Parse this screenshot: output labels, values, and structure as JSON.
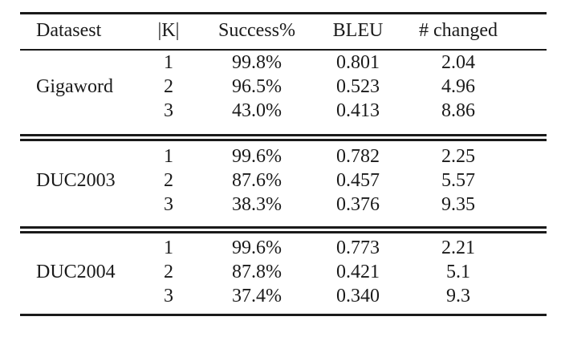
{
  "table": {
    "headers": {
      "dataset": "Datasest",
      "k": "|K|",
      "success": "Success%",
      "bleu": "BLEU",
      "changed": "# changed"
    },
    "groups": [
      {
        "dataset": "Gigaword",
        "rows": [
          {
            "k": "1",
            "success": "99.8%",
            "bleu": "0.801",
            "changed": "2.04"
          },
          {
            "k": "2",
            "success": "96.5%",
            "bleu": "0.523",
            "changed": "4.96"
          },
          {
            "k": "3",
            "success": "43.0%",
            "bleu": "0.413",
            "changed": "8.86"
          }
        ]
      },
      {
        "dataset": "DUC2003",
        "rows": [
          {
            "k": "1",
            "success": "99.6%",
            "bleu": "0.782",
            "changed": "2.25"
          },
          {
            "k": "2",
            "success": "87.6%",
            "bleu": "0.457",
            "changed": "5.57"
          },
          {
            "k": "3",
            "success": "38.3%",
            "bleu": "0.376",
            "changed": "9.35"
          }
        ]
      },
      {
        "dataset": "DUC2004",
        "rows": [
          {
            "k": "1",
            "success": "99.6%",
            "bleu": "0.773",
            "changed": "2.21"
          },
          {
            "k": "2",
            "success": "87.8%",
            "bleu": "0.421",
            "changed": "5.1"
          },
          {
            "k": "3",
            "success": "37.4%",
            "bleu": "0.340",
            "changed": "9.3"
          }
        ]
      }
    ]
  }
}
